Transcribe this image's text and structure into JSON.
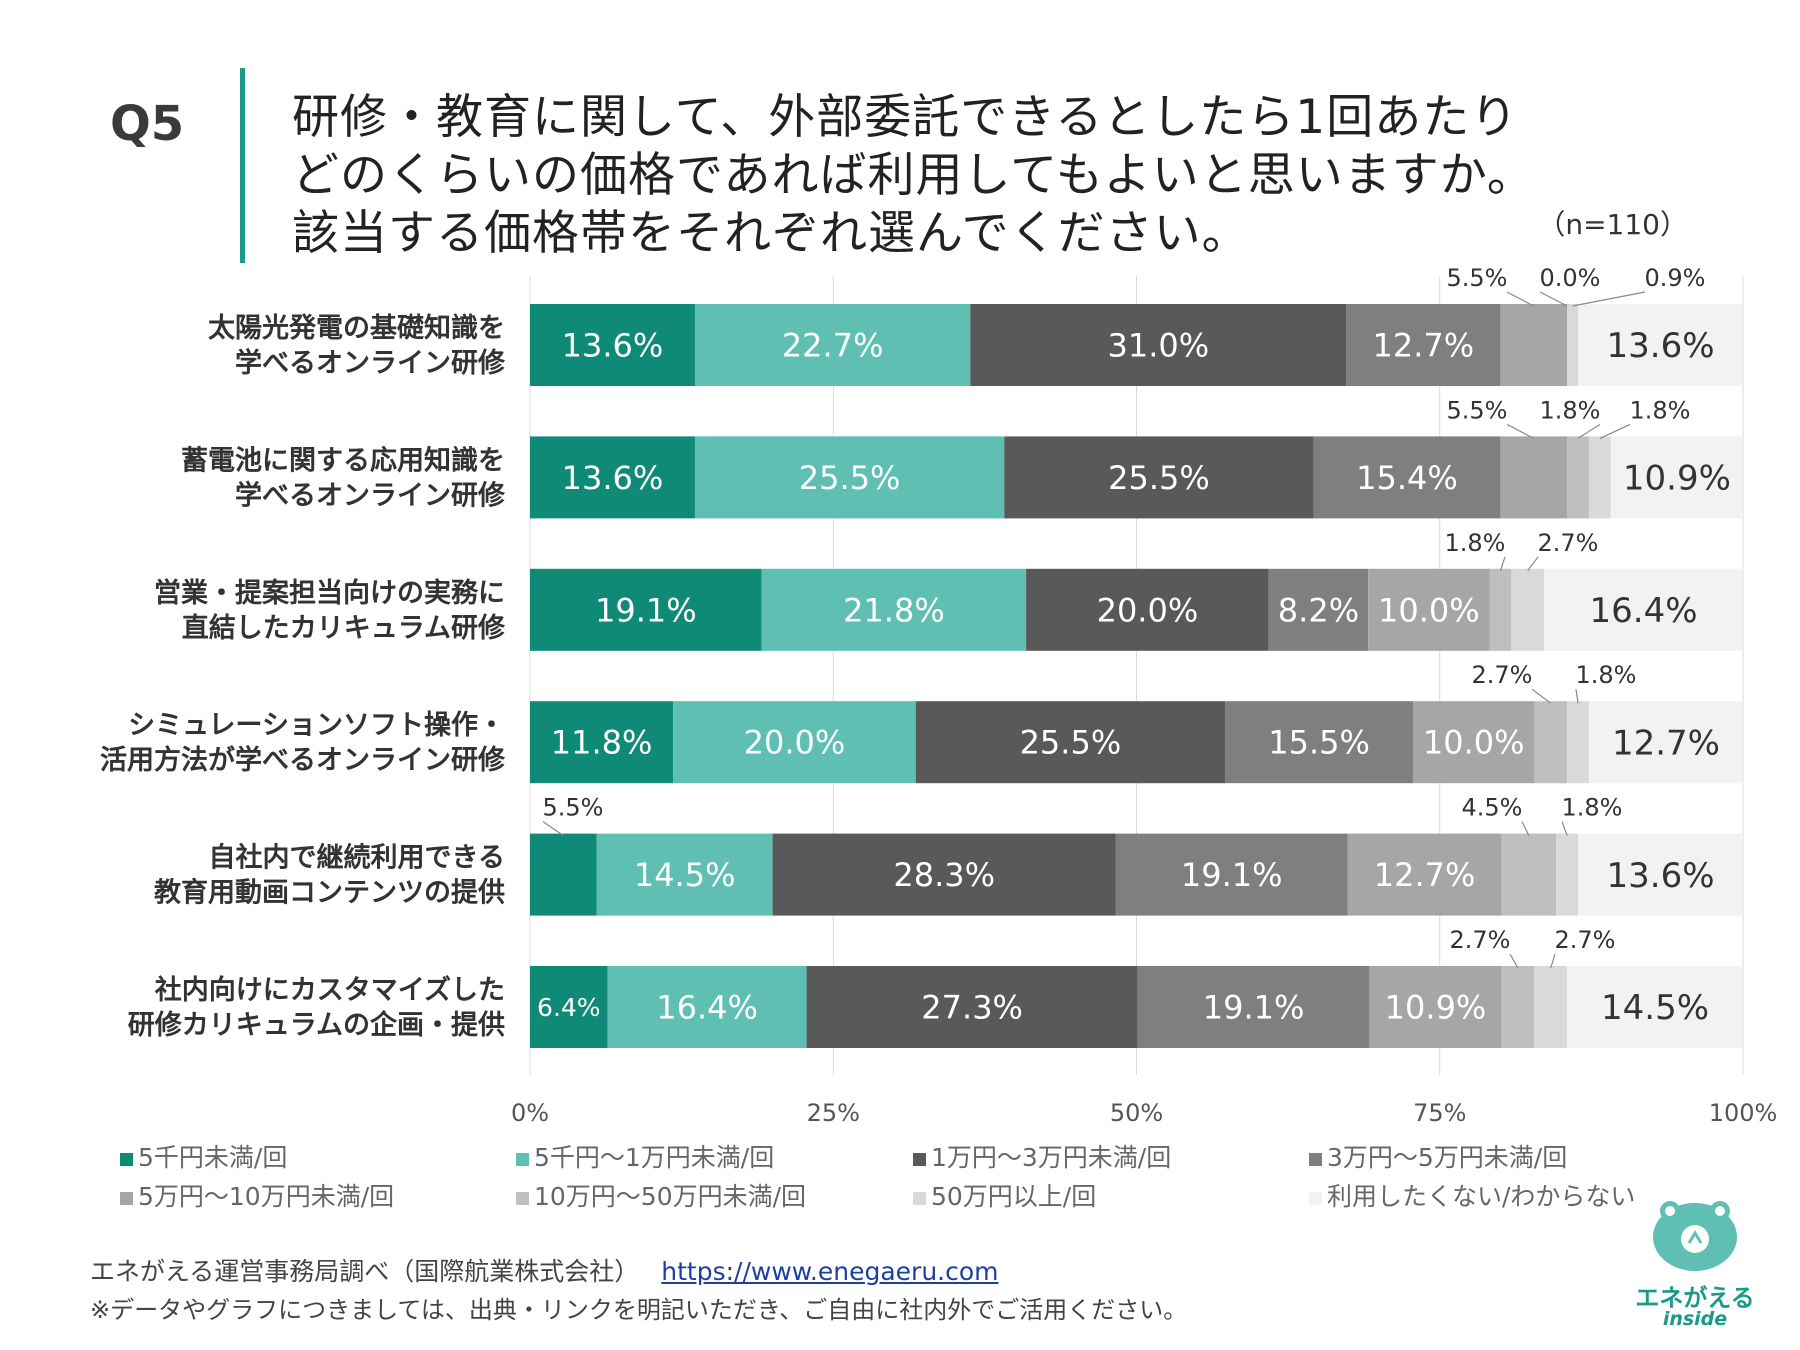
{
  "question": {
    "number": "Q5",
    "lines": [
      "研修・教育に関して、外部委託できるとしたら1回あたり",
      "どのくらいの価格であれば利用してもよいと思いますか。",
      "該当する価格帯をそれぞれ選んでください。"
    ],
    "sample": "（n=110）"
  },
  "colors": {
    "accent": "#1a9a88",
    "series": [
      "#0f8a76",
      "#5fbfb2",
      "#595959",
      "#7f7f7f",
      "#a6a6a6",
      "#bfbfbf",
      "#d9d9d9",
      "#f2f2f2"
    ],
    "label_light": "#ffffff",
    "label_dark": "#333333"
  },
  "chart_data": {
    "type": "bar",
    "orientation": "horizontal-stacked-100",
    "xlim": [
      0,
      100
    ],
    "x_ticks": [
      "0%",
      "25%",
      "50%",
      "75%",
      "100%"
    ],
    "x_tick_values": [
      0,
      25,
      50,
      75,
      100
    ],
    "grid": true,
    "legend_position": "bottom",
    "categories": [
      [
        "太陽光発電の基礎知識を",
        "学べるオンライン研修"
      ],
      [
        "蓄電池に関する応用知識を",
        "学べるオンライン研修"
      ],
      [
        "営業・提案担当向けの実務に",
        "直結したカリキュラム研修"
      ],
      [
        "シミュレーションソフト操作・",
        "活用方法が学べるオンライン研修"
      ],
      [
        "自社内で継続利用できる",
        "教育用動画コンテンツの提供"
      ],
      [
        "社内向けにカスタマイズした",
        "研修カリキュラムの企画・提供"
      ]
    ],
    "series": [
      {
        "name": "5千円未満/回",
        "values": [
          13.6,
          13.6,
          19.1,
          11.8,
          5.5,
          6.4
        ]
      },
      {
        "name": "5千円～1万円未満/回",
        "values": [
          22.7,
          25.5,
          21.8,
          20.0,
          14.5,
          16.4
        ]
      },
      {
        "name": "1万円～3万円未満/回",
        "values": [
          31.0,
          25.5,
          20.0,
          25.5,
          28.3,
          27.3
        ]
      },
      {
        "name": "3万円～5万円未満/回",
        "values": [
          12.7,
          15.4,
          8.2,
          15.5,
          19.1,
          19.1
        ]
      },
      {
        "name": "5万円～10万円未満/回",
        "values": [
          5.5,
          5.5,
          10.0,
          10.0,
          12.7,
          10.9
        ]
      },
      {
        "name": "10万円～50万円未満/回",
        "values": [
          0.0,
          1.8,
          1.8,
          2.7,
          4.5,
          2.7
        ]
      },
      {
        "name": "50万円以上/回",
        "values": [
          0.9,
          1.8,
          2.7,
          1.8,
          1.8,
          2.7
        ]
      },
      {
        "name": "利用したくない/わからない",
        "values": [
          13.6,
          10.9,
          16.4,
          12.7,
          13.6,
          14.5
        ]
      }
    ],
    "callouts": [
      {
        "row": 0,
        "labels": [
          "5.5%",
          "0.0%",
          "0.9%"
        ]
      },
      {
        "row": 1,
        "labels": [
          "5.5%",
          "1.8%",
          "1.8%"
        ]
      },
      {
        "row": 2,
        "labels": [
          "1.8%",
          "2.7%"
        ]
      },
      {
        "row": 3,
        "labels": [
          "2.7%",
          "1.8%"
        ]
      },
      {
        "row": 4,
        "labels": [
          "5.5%",
          "4.5%",
          "1.8%"
        ]
      },
      {
        "row": 5,
        "labels": [
          "2.7%",
          "2.7%"
        ]
      }
    ]
  },
  "footer": {
    "source": "エネがえる運営事務局調べ（国際航業株式会社）",
    "url": "https://www.enegaeru.com",
    "note": "※データやグラフにつきましては、出典・リンクを明記いただき、ご自由に社内外でご活用ください。"
  },
  "logo": {
    "name": "エネがえる",
    "sub": "inside"
  }
}
